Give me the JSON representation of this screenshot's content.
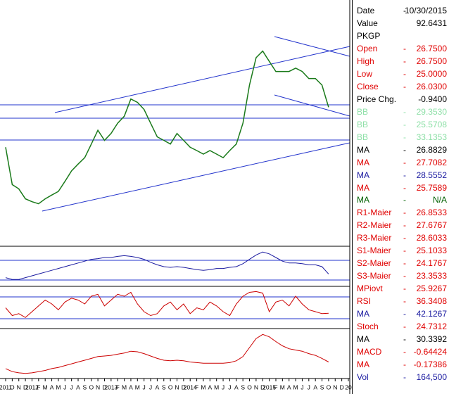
{
  "chart_data": [
    {
      "type": "line",
      "log_scale": true,
      "ylim": [
        6,
        80
      ],
      "categories": [
        "2011",
        "O",
        "N",
        "D",
        "2012",
        "F",
        "M",
        "A",
        "M",
        "J",
        "J",
        "A",
        "S",
        "O",
        "N",
        "D",
        "2013",
        "F",
        "M",
        "A",
        "M",
        "J",
        "J",
        "A",
        "S",
        "O",
        "N",
        "D",
        "2014",
        "F",
        "M",
        "A",
        "M",
        "J",
        "J",
        "A",
        "S",
        "O",
        "N",
        "D",
        "2015",
        "F",
        "M",
        "A",
        "M",
        "J",
        "J",
        "A",
        "S",
        "O",
        "N",
        "D",
        "20"
      ],
      "series": [
        {
          "color": "#1a7a1a",
          "values": [
            16.9,
            11.3,
            10.8,
            9.7,
            9.4,
            9.2,
            9.7,
            10.1,
            10.5,
            11.7,
            13.1,
            14.1,
            15.1,
            17.5,
            20.3,
            18.2,
            19.6,
            21.9,
            23.6,
            28.4,
            27.4,
            25.4,
            21.9,
            18.9,
            18.2,
            17.5,
            19.6,
            18.2,
            16.9,
            16.3,
            15.7,
            16.3,
            15.7,
            15.1,
            16.3,
            17.5,
            21.9,
            33.0,
            44.3,
            47.6,
            42.6,
            38.2,
            38.2,
            38.2,
            39.6,
            38.2,
            35.4,
            35.4,
            33.0,
            26.0,
            null,
            null,
            null
          ]
        }
      ]
    },
    {
      "type": "line",
      "ylim": [
        0,
        100
      ],
      "series": [
        {
          "color": "#1a1aa0",
          "values": [
            20,
            15,
            15,
            20,
            25,
            30,
            35,
            40,
            45,
            50,
            55,
            60,
            65,
            70,
            72,
            75,
            75,
            78,
            80,
            78,
            75,
            70,
            62,
            55,
            50,
            48,
            50,
            48,
            45,
            42,
            40,
            42,
            45,
            45,
            48,
            50,
            58,
            70,
            82,
            90,
            85,
            75,
            65,
            60,
            60,
            58,
            55,
            55,
            50,
            30,
            null,
            null,
            null
          ]
        }
      ]
    },
    {
      "type": "line",
      "ylim": [
        0,
        100
      ],
      "series": [
        {
          "color": "#cc0000",
          "values": [
            50,
            30,
            35,
            25,
            40,
            55,
            70,
            60,
            45,
            65,
            75,
            70,
            60,
            80,
            85,
            55,
            70,
            85,
            80,
            90,
            60,
            40,
            30,
            35,
            55,
            65,
            45,
            60,
            35,
            50,
            45,
            65,
            55,
            40,
            30,
            60,
            80,
            90,
            92,
            88,
            40,
            65,
            70,
            55,
            80,
            60,
            45,
            40,
            35,
            36,
            null,
            null,
            null
          ]
        }
      ]
    },
    {
      "type": "line",
      "ylim": [
        -3,
        4.5
      ],
      "series": [
        {
          "color": "#cc0000",
          "values": [
            -1.7,
            -2.2,
            -2.4,
            -2.5,
            -2.4,
            -2.2,
            -2,
            -1.7,
            -1.5,
            -1.2,
            -0.9,
            -0.6,
            -0.3,
            0,
            0.3,
            0.4,
            0.5,
            0.7,
            0.9,
            1.2,
            1.1,
            0.8,
            0.4,
            0,
            -0.3,
            -0.4,
            -0.3,
            -0.4,
            -0.6,
            -0.7,
            -0.8,
            -0.8,
            -0.8,
            -0.8,
            -0.7,
            -0.4,
            0.3,
            1.8,
            3.3,
            4,
            3.6,
            2.8,
            2.1,
            1.6,
            1.4,
            1.2,
            0.8,
            0.5,
            0,
            -0.6,
            null,
            null,
            null
          ]
        }
      ]
    }
  ],
  "info_panel": {
    "rows": [
      {
        "label": "Date",
        "sep": "-",
        "value": "10/30/2015",
        "color": "#000000"
      },
      {
        "label": "Value",
        "value": "92.6431",
        "color": "#000000"
      },
      {
        "label": "PKGP",
        "color": "#000000"
      },
      {
        "label": "Open",
        "sep": "-",
        "value": "26.7500",
        "color": "#e00000"
      },
      {
        "label": "High",
        "sep": "-",
        "value": "26.7500",
        "color": "#e00000"
      },
      {
        "label": "Low",
        "sep": "-",
        "value": "25.0000",
        "color": "#e00000"
      },
      {
        "label": "Close",
        "sep": "-",
        "value": "26.0300",
        "color": "#e00000"
      },
      {
        "label": "Price Chg.",
        "value": "-0.9400",
        "color": "#000000"
      },
      {
        "label": "BB",
        "sep": "-",
        "value": "29.3530",
        "color": "#8fe0a8"
      },
      {
        "label": "BB",
        "sep": "-",
        "value": "25.5708",
        "color": "#8fe0a8"
      },
      {
        "label": "BB",
        "sep": "-",
        "value": "33.1353",
        "color": "#8fe0a8"
      },
      {
        "label": "MA",
        "sep": "-",
        "value": "26.8829",
        "color": "#000000"
      },
      {
        "label": "MA",
        "sep": "-",
        "value": "27.7082",
        "color": "#e00000"
      },
      {
        "label": "MA",
        "sep": "-",
        "value": "28.5552",
        "color": "#1a1aa0"
      },
      {
        "label": "MA",
        "sep": "-",
        "value": "25.7589",
        "color": "#e00000"
      },
      {
        "label": "MA",
        "sep": "-",
        "value": "N/A",
        "color": "#006000"
      },
      {
        "label": "R1-Maier",
        "sep": "-",
        "value": "26.8533",
        "color": "#e00000"
      },
      {
        "label": "R2-Maier",
        "sep": "-",
        "value": "27.6767",
        "color": "#e00000"
      },
      {
        "label": "R3-Maier",
        "sep": "-",
        "value": "28.6033",
        "color": "#e00000"
      },
      {
        "label": "S1-Maier",
        "sep": "-",
        "value": "25.1033",
        "color": "#e00000"
      },
      {
        "label": "S2-Maier",
        "sep": "-",
        "value": "24.1767",
        "color": "#e00000"
      },
      {
        "label": "S3-Maier",
        "sep": "-",
        "value": "23.3533",
        "color": "#e00000"
      },
      {
        "label": "MPiovt",
        "sep": "-",
        "value": "25.9267",
        "color": "#e00000"
      },
      {
        "label": "RSI",
        "sep": "-",
        "value": "36.3408",
        "color": "#e00000"
      },
      {
        "label": "MA",
        "sep": "-",
        "value": "42.1267",
        "color": "#1a1aa0"
      },
      {
        "label": "Stoch",
        "sep": "-",
        "value": "24.7312",
        "color": "#e00000"
      },
      {
        "label": "MA",
        "sep": "-",
        "value": "30.3392",
        "color": "#000000"
      },
      {
        "label": "MACD",
        "sep": "-",
        "value": "-0.64424",
        "color": "#e00000"
      },
      {
        "label": "MA",
        "sep": "-",
        "value": "-0.17386",
        "color": "#e00000"
      },
      {
        "label": "Vol",
        "sep": "-",
        "value": "164,500",
        "color": "#1a1aa0"
      }
    ]
  }
}
